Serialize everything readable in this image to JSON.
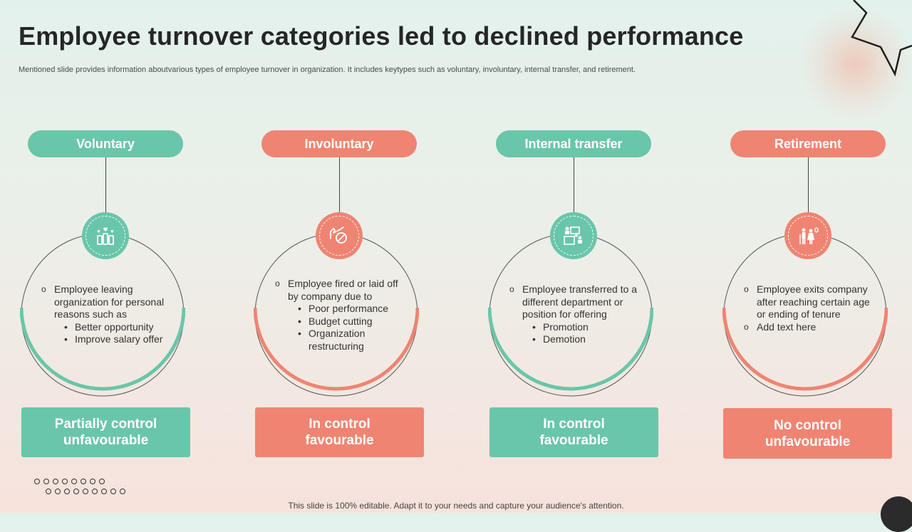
{
  "slide": {
    "title": "Employee turnover categories led to declined performance",
    "subtitle": "Mentioned slide provides information aboutvarious types of employee turnover in organization. It includes keytypes such as voluntary, involuntary, internal transfer, and retirement.",
    "footer": "This slide is 100% editable. Adapt it to your needs and capture your audience's attention."
  },
  "colors": {
    "teal": "#69c6aa",
    "coral": "#ef8472",
    "title": "#262626"
  },
  "categories": [
    {
      "label": "Voluntary",
      "icon": "raised-hands-heart-icon",
      "lines": [
        {
          "marker": "o",
          "text": "Employee leaving organization for personal reasons such as"
        },
        {
          "marker": "•",
          "text": "Better opportunity"
        },
        {
          "marker": "•",
          "text": "Improve salary offer"
        }
      ],
      "result_line1": "Partially control",
      "result_line2": "unfavourable"
    },
    {
      "label": "Involuntary",
      "icon": "hand-prohibited-icon",
      "lines": [
        {
          "marker": "o",
          "text": "Employee fired or laid off by company due to"
        },
        {
          "marker": "•",
          "text": "Poor performance"
        },
        {
          "marker": "•",
          "text": "Budget cutting"
        },
        {
          "marker": "•",
          "text": "Organization restructuring"
        }
      ],
      "result_line1": "In control",
      "result_line2": "favourable"
    },
    {
      "label": "Internal transfer",
      "icon": "people-transfer-icon",
      "lines": [
        {
          "marker": "o",
          "text": "Employee transferred to a different department or position for offering"
        },
        {
          "marker": "•",
          "text": "Promotion"
        },
        {
          "marker": "•",
          "text": "Demotion"
        }
      ],
      "result_line1": "In control",
      "result_line2": "favourable"
    },
    {
      "label": "Retirement",
      "icon": "elderly-couple-icon",
      "lines": [
        {
          "marker": "o",
          "text": "Employee exits company after reaching certain age or ending of tenure"
        },
        {
          "marker": "o",
          "text": "Add text here"
        }
      ],
      "result_line1": "No control",
      "result_line2": "unfavourable"
    }
  ]
}
